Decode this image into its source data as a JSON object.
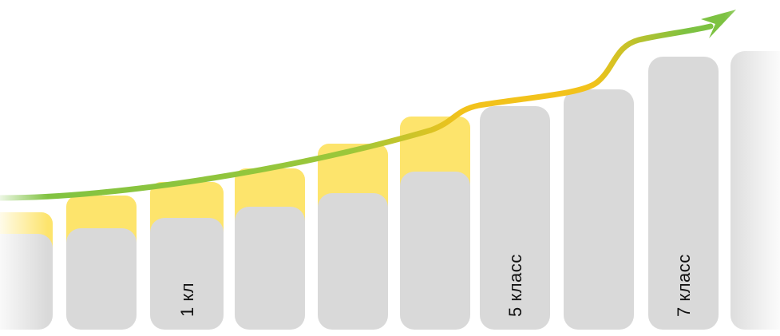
{
  "columns": [
    {
      "label": "",
      "yellow": 0.43,
      "gray": 0.35
    },
    {
      "label": "",
      "yellow": 0.49,
      "gray": 0.37
    },
    {
      "label": "1 кл",
      "yellow": 0.54,
      "gray": 0.41
    },
    {
      "label": "",
      "yellow": 0.59,
      "gray": 0.45
    },
    {
      "label": "",
      "yellow": 0.68,
      "gray": 0.5
    },
    {
      "label": "",
      "yellow": 0.78,
      "gray": 0.58
    },
    {
      "label": "5 класс",
      "yellow": 0,
      "gray": 0.82
    },
    {
      "label": "",
      "yellow": 0,
      "gray": 0.88
    },
    {
      "label": "7 класс",
      "yellow": 0,
      "gray": 1.0
    },
    {
      "label": "",
      "yellow": 0,
      "gray": 1.02
    }
  ],
  "colors": {
    "bar_gray": "#d9d9d9",
    "bar_yellow": "#fde46c",
    "arrow_green": "#7dc242",
    "arrow_yellow": "#f2c21b"
  },
  "arrow": {
    "icon": "growth-arrow-icon"
  }
}
